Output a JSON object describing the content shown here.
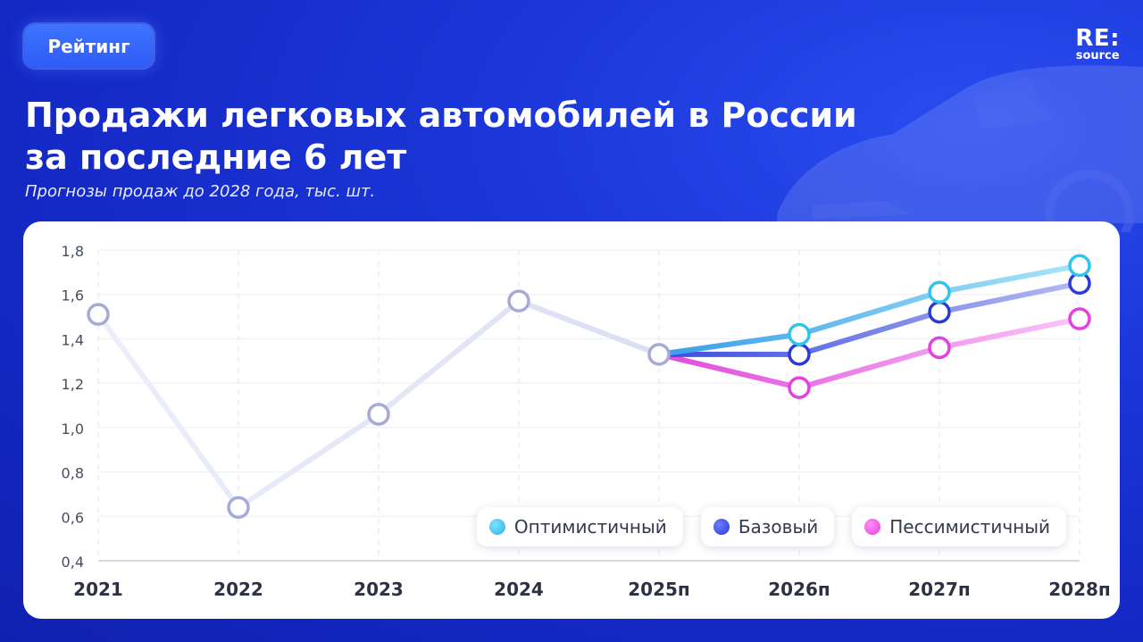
{
  "badge": {
    "label": "Рейтинг"
  },
  "logo": {
    "main": "RE:",
    "sub": "source"
  },
  "header": {
    "title_line1": "Продажи легковых автомобилей в России",
    "title_line2": "за последние 6 лет",
    "subtitle": "Прогнозы продаж до 2028 года, тыс. шт."
  },
  "colors": {
    "history": "#a7a9d6",
    "optimistic": "#2fc3ee",
    "base": "#2a3bd4",
    "pessimistic": "#e341e0"
  },
  "chart_data": {
    "type": "line",
    "title": "Продажи легковых автомобилей в России за последние 6 лет",
    "subtitle": "Прогнозы продаж до 2028 года, тыс. шт.",
    "categories": [
      "2021",
      "2022",
      "2023",
      "2024",
      "2025п",
      "2026п",
      "2027п",
      "2028п"
    ],
    "ylim": [
      0.4,
      1.8
    ],
    "yticks": [
      "0,4",
      "0,6",
      "0,8",
      "1,0",
      "1,2",
      "1,4",
      "1,6",
      "1,8"
    ],
    "ytick_values": [
      0.4,
      0.6,
      0.8,
      1.0,
      1.2,
      1.4,
      1.6,
      1.8
    ],
    "grid": true,
    "legend_position": "bottom-right",
    "series": [
      {
        "key": "history",
        "values": [
          1.51,
          0.64,
          1.06,
          1.57,
          1.33,
          null,
          null,
          null
        ]
      },
      {
        "key": "optimistic",
        "name": "Оптимистичный",
        "values": [
          null,
          null,
          null,
          null,
          1.33,
          1.42,
          1.61,
          1.73
        ]
      },
      {
        "key": "base",
        "name": "Базовый",
        "values": [
          null,
          null,
          null,
          null,
          1.33,
          1.33,
          1.52,
          1.65
        ]
      },
      {
        "key": "pessimistic",
        "name": "Пессимистичный",
        "values": [
          null,
          null,
          null,
          null,
          1.33,
          1.18,
          1.36,
          1.49
        ]
      }
    ]
  }
}
